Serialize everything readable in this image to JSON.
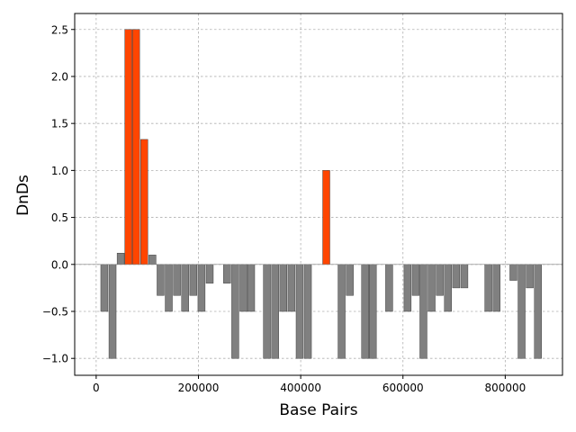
{
  "chart_data": {
    "type": "bar",
    "xlabel": "Base Pairs",
    "ylabel": "DnDs",
    "xlim": [
      -42000,
      912000
    ],
    "ylim": [
      -1.18,
      2.67
    ],
    "xticks": [
      0,
      200000,
      400000,
      600000,
      800000
    ],
    "xtick_labels": [
      "0",
      "200000",
      "400000",
      "600000",
      "800000"
    ],
    "yticks": [
      -1.0,
      -0.5,
      0.0,
      0.5,
      1.0,
      1.5,
      2.0,
      2.5
    ],
    "ytick_labels": [
      "−1.0",
      "−0.5",
      "0.0",
      "0.5",
      "1.0",
      "1.5",
      "2.0",
      "2.5"
    ],
    "grid": true,
    "bar_width": 14000,
    "colors": {
      "positive": "#ff4500",
      "negative": "#808080",
      "edge": "#404040"
    },
    "x": [
      16000,
      32000,
      48000,
      63000,
      78000,
      94000,
      110000,
      126000,
      142000,
      158000,
      174000,
      190000,
      206000,
      222000,
      256000,
      272000,
      288000,
      303000,
      334000,
      350000,
      366000,
      382000,
      398000,
      414000,
      450000,
      480000,
      496000,
      526000,
      541000,
      573000,
      609000,
      625000,
      640000,
      656000,
      672000,
      688000,
      704000,
      720000,
      767000,
      783000,
      816000,
      832000,
      848000,
      864000
    ],
    "values": [
      -0.5,
      -1.0,
      0.12,
      2.5,
      2.5,
      1.33,
      0.1,
      -0.33,
      -0.5,
      -0.33,
      -0.5,
      -0.33,
      -0.5,
      -0.2,
      -0.2,
      -1.0,
      -0.5,
      -0.5,
      -1.0,
      -1.0,
      -0.5,
      -0.5,
      -1.0,
      -1.0,
      1.0,
      -1.0,
      -0.33,
      -1.0,
      -1.0,
      -0.5,
      -0.5,
      -0.33,
      -1.0,
      -0.5,
      -0.33,
      -0.5,
      -0.25,
      -0.25,
      -0.5,
      -0.5,
      -0.17,
      -1.0,
      -0.25,
      -1.0
    ]
  }
}
